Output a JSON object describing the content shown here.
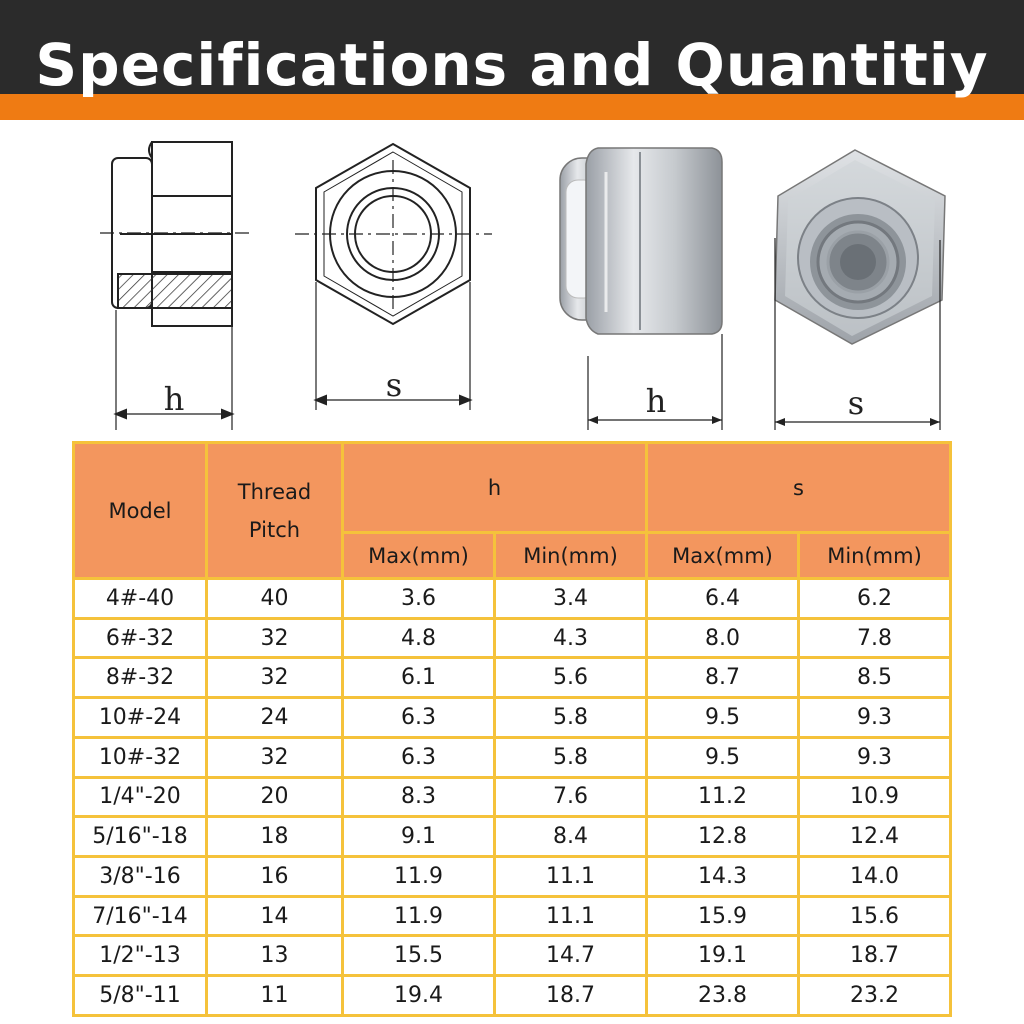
{
  "header": {
    "title": "Specifications and Quantitiy",
    "background_color": "#2b2b2b",
    "stripe_color": "#ef7b13"
  },
  "diagrams": {
    "side_view_label": "h",
    "front_view_label": "s",
    "photo_side_label": "h",
    "photo_front_label": "s"
  },
  "table": {
    "header_color": "#f3965e",
    "border_color": "#f5c23b",
    "col_model": "Model",
    "col_thread_line1": "Thread",
    "col_thread_line2": "Pitch",
    "group_h": "h",
    "group_s": "s",
    "h_max": "Max(mm)",
    "h_min": "Min(mm)",
    "s_max": "Max(mm)",
    "s_min": "Min(mm)",
    "rows": [
      {
        "model": "4#-40",
        "pitch": "40",
        "h_max": "3.6",
        "h_min": "3.4",
        "s_max": "6.4",
        "s_min": "6.2"
      },
      {
        "model": "6#-32",
        "pitch": "32",
        "h_max": "4.8",
        "h_min": "4.3",
        "s_max": "8.0",
        "s_min": "7.8"
      },
      {
        "model": "8#-32",
        "pitch": "32",
        "h_max": "6.1",
        "h_min": "5.6",
        "s_max": "8.7",
        "s_min": "8.5"
      },
      {
        "model": "10#-24",
        "pitch": "24",
        "h_max": "6.3",
        "h_min": "5.8",
        "s_max": "9.5",
        "s_min": "9.3"
      },
      {
        "model": "10#-32",
        "pitch": "32",
        "h_max": "6.3",
        "h_min": "5.8",
        "s_max": "9.5",
        "s_min": "9.3"
      },
      {
        "model": "1/4\"-20",
        "pitch": "20",
        "h_max": "8.3",
        "h_min": "7.6",
        "s_max": "11.2",
        "s_min": "10.9"
      },
      {
        "model": "5/16\"-18",
        "pitch": "18",
        "h_max": "9.1",
        "h_min": "8.4",
        "s_max": "12.8",
        "s_min": "12.4"
      },
      {
        "model": "3/8\"-16",
        "pitch": "16",
        "h_max": "11.9",
        "h_min": "11.1",
        "s_max": "14.3",
        "s_min": "14.0"
      },
      {
        "model": "7/16\"-14",
        "pitch": "14",
        "h_max": "11.9",
        "h_min": "11.1",
        "s_max": "15.9",
        "s_min": "15.6"
      },
      {
        "model": "1/2\"-13",
        "pitch": "13",
        "h_max": "15.5",
        "h_min": "14.7",
        "s_max": "19.1",
        "s_min": "18.7"
      },
      {
        "model": "5/8\"-11",
        "pitch": "11",
        "h_max": "19.4",
        "h_min": "18.7",
        "s_max": "23.8",
        "s_min": "23.2"
      }
    ]
  }
}
